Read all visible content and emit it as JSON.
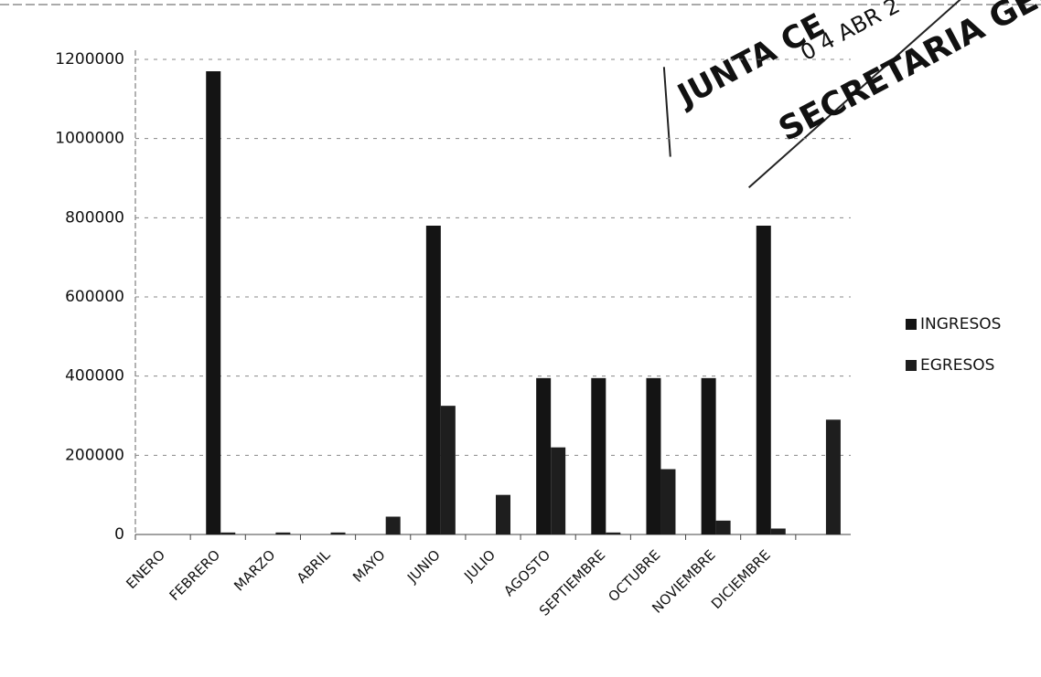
{
  "chart_data": {
    "type": "bar",
    "categories": [
      "ENERO",
      "FEBRERO",
      "MARZO",
      "ABRIL",
      "MAYO",
      "JUNIO",
      "JULIO",
      "AGOSTO",
      "SEPTIEMBRE",
      "OCTUBRE",
      "NOVIEMBRE",
      "DICIEMBRE",
      null
    ],
    "series": [
      {
        "name": "INGRESOS",
        "color": "#141414",
        "values": [
          0,
          1170000,
          0,
          0,
          0,
          780000,
          0,
          395000,
          395000,
          395000,
          395000,
          780000,
          0
        ]
      },
      {
        "name": "EGRESOS",
        "color": "#1e1e1e",
        "values": [
          0,
          5000,
          5000,
          5000,
          45000,
          325000,
          100000,
          220000,
          5000,
          165000,
          35000,
          15000,
          290000
        ]
      }
    ],
    "ylim": [
      0,
      1200000
    ],
    "yticks": [
      0,
      200000,
      400000,
      600000,
      800000,
      1000000,
      1200000
    ],
    "grid": true,
    "legend": "right",
    "annotations": [
      "JUNTA CE",
      "0 4 ABR 2",
      "SECRETARIA GENER"
    ]
  }
}
